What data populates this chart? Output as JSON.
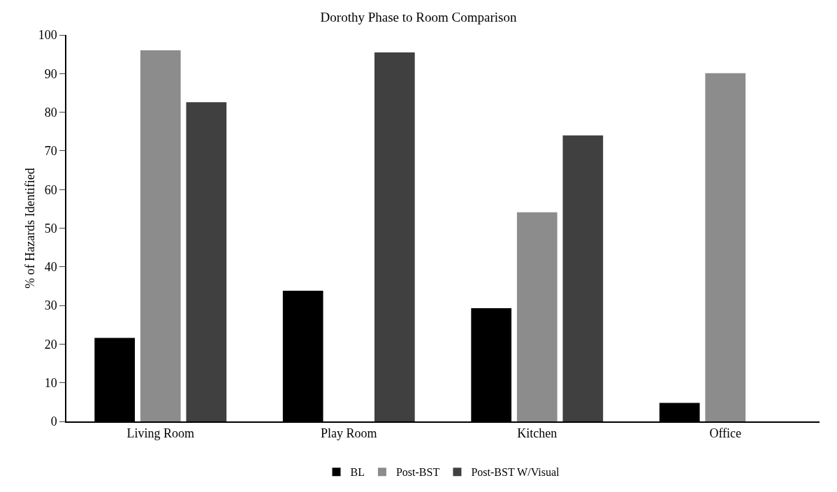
{
  "chart_data": {
    "type": "bar",
    "title": "Dorothy Phase to Room Comparison",
    "ylabel": "% of Hazards Identified",
    "categories": [
      "Living Room",
      "Play Room",
      "Kitchen",
      "Office"
    ],
    "series": [
      {
        "name": "BL",
        "color": "#000000",
        "values": [
          21.6,
          33.8,
          29.3,
          4.8
        ]
      },
      {
        "name": "Post-BST",
        "color": "#8c8c8c",
        "values": [
          96.0,
          null,
          54.1,
          90.1
        ]
      },
      {
        "name": "Post-BST W/Visual",
        "color": "#404040",
        "values": [
          82.6,
          95.5,
          74.0,
          null
        ]
      }
    ],
    "ylim": [
      0,
      100
    ],
    "yticks": [
      0,
      10,
      20,
      30,
      40,
      50,
      60,
      70,
      80,
      90,
      100
    ],
    "grid": false,
    "legend": "bottom"
  }
}
